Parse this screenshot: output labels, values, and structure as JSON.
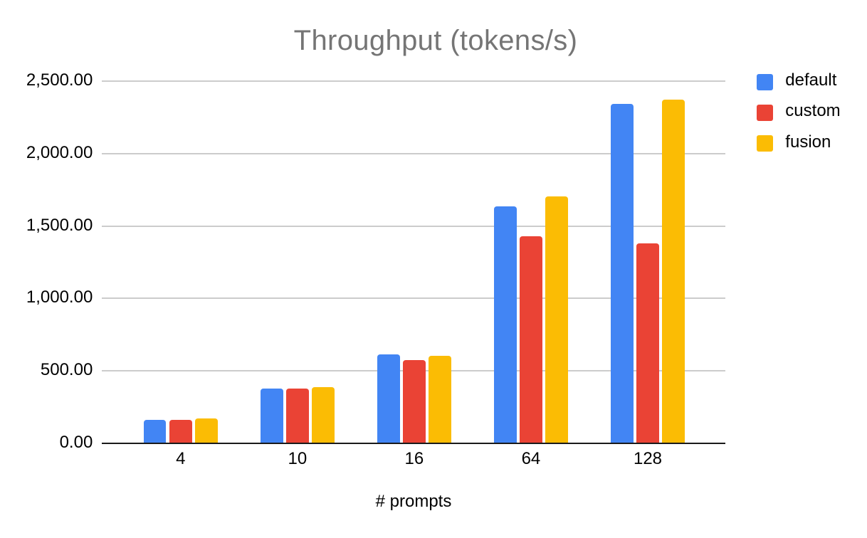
{
  "chart_data": {
    "type": "bar",
    "title": "Throughput (tokens/s)",
    "xlabel": "# prompts",
    "ylabel": "",
    "categories": [
      "4",
      "10",
      "16",
      "64",
      "128"
    ],
    "series": [
      {
        "name": "default",
        "color": "#4285F4",
        "values": [
          161,
          376,
          612,
          1635,
          2344
        ]
      },
      {
        "name": "custom",
        "color": "#EA4335",
        "values": [
          162,
          378,
          572,
          1428,
          1379
        ]
      },
      {
        "name": "fusion",
        "color": "#FBBC04",
        "values": [
          169,
          388,
          605,
          1706,
          2373
        ]
      }
    ],
    "ylim": [
      0,
      2500
    ],
    "yticks": [
      {
        "value": 0,
        "label": "0.00"
      },
      {
        "value": 500,
        "label": "500.00"
      },
      {
        "value": 1000,
        "label": "1,000.00"
      },
      {
        "value": 1500,
        "label": "1,500.00"
      },
      {
        "value": 2000,
        "label": "2,000.00"
      },
      {
        "value": 2500,
        "label": "2,500.00"
      }
    ],
    "grid": true,
    "legend_position": "right",
    "colors": {
      "title_text": "#757575",
      "axis_text": "#000000",
      "gridline": "#cccccc",
      "axis_line": "#1a1a1a",
      "background": "#ffffff"
    }
  }
}
